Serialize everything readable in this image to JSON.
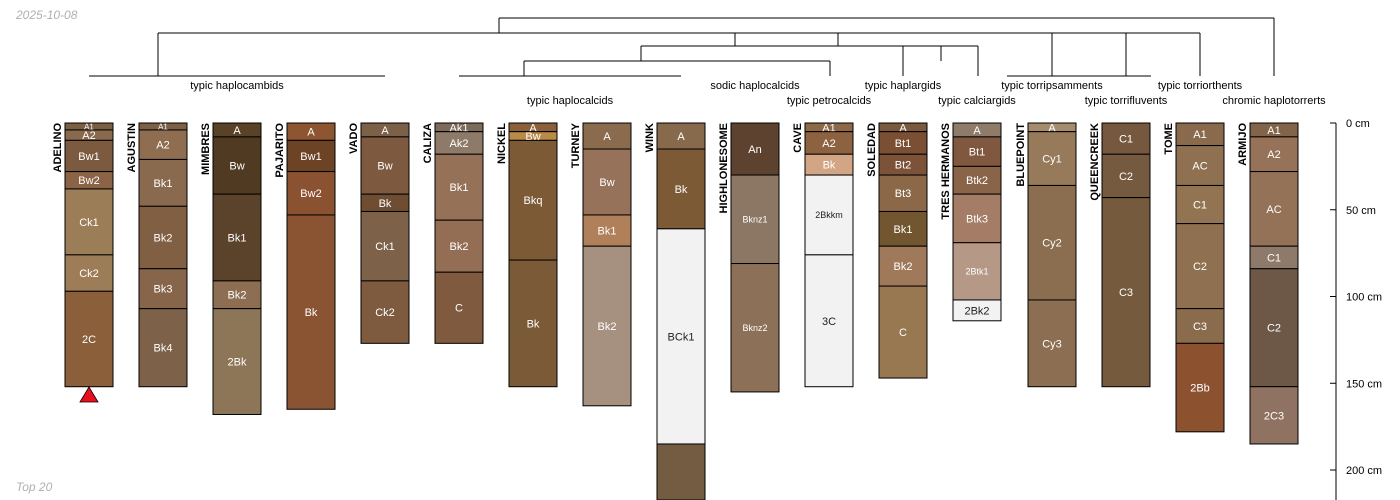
{
  "date_stamp": "2025-10-08",
  "footer": "Top 20",
  "depth_axis": {
    "unit": "cm",
    "ticks": [
      0,
      50,
      100,
      150,
      200
    ],
    "tick_labels": [
      "0 cm",
      "50 cm",
      "100 cm",
      "150 cm",
      "200 cm"
    ],
    "max_shown": 215
  },
  "colors": {
    "line": "#000000",
    "marker": "#e8101a",
    "white_horizon": "#f2f2f2"
  },
  "dendrogram": {
    "taxa_labels": [
      "typic haplocambids",
      "typic haplocalcids",
      "sodic haplocalcids",
      "typic petrocalcids",
      "typic haplargids",
      "typic calciargids",
      "typic torripsamments",
      "typic torrifluvents",
      "typic torriorthents",
      "chromic haplotorrerts"
    ]
  },
  "profiles": [
    {
      "name": "ADELINO",
      "marker": "red-triangle",
      "horizons": [
        {
          "n": "A1",
          "t": 0,
          "b": 4,
          "c": "#7a5f45"
        },
        {
          "n": "A2",
          "t": 4,
          "b": 10,
          "c": "#8a6a4e"
        },
        {
          "n": "Bw1",
          "t": 10,
          "b": 28,
          "c": "#7c5a3f"
        },
        {
          "n": "Bw2",
          "t": 28,
          "b": 38,
          "c": "#8b6346"
        },
        {
          "n": "Ck1",
          "t": 38,
          "b": 76,
          "c": "#9b7d57"
        },
        {
          "n": "Ck2",
          "t": 76,
          "b": 97,
          "c": "#9d7d58"
        },
        {
          "n": "2C",
          "t": 97,
          "b": 152,
          "c": "#8c5f3b"
        }
      ]
    },
    {
      "name": "AGUSTIN",
      "horizons": [
        {
          "n": "A1",
          "t": 0,
          "b": 4,
          "c": "#7c6048"
        },
        {
          "n": "A2",
          "t": 4,
          "b": 21,
          "c": "#8f6d50"
        },
        {
          "n": "Bk1",
          "t": 21,
          "b": 48,
          "c": "#8a6a4f"
        },
        {
          "n": "Bk2",
          "t": 48,
          "b": 84,
          "c": "#815f43"
        },
        {
          "n": "Bk3",
          "t": 84,
          "b": 107,
          "c": "#86654a"
        },
        {
          "n": "Bk4",
          "t": 107,
          "b": 152,
          "c": "#7d6148"
        }
      ]
    },
    {
      "name": "MIMBRES",
      "horizons": [
        {
          "n": "A",
          "t": 0,
          "b": 8,
          "c": "#5a4228"
        },
        {
          "n": "Bw",
          "t": 8,
          "b": 41,
          "c": "#503a22"
        },
        {
          "n": "Bk1",
          "t": 41,
          "b": 91,
          "c": "#5a432a"
        },
        {
          "n": "Bk2",
          "t": 91,
          "b": 107,
          "c": "#8d6e52"
        },
        {
          "n": "2Bk",
          "t": 107,
          "b": 168,
          "c": "#8c7657"
        }
      ]
    },
    {
      "name": "PAJARITO",
      "horizons": [
        {
          "n": "A",
          "t": 0,
          "b": 10,
          "c": "#8d5630"
        },
        {
          "n": "Bw1",
          "t": 10,
          "b": 28,
          "c": "#6d4326"
        },
        {
          "n": "Bw2",
          "t": 28,
          "b": 53,
          "c": "#8b5231"
        },
        {
          "n": "Bk",
          "t": 53,
          "b": 165,
          "c": "#8a5332"
        }
      ]
    },
    {
      "name": "VADO",
      "horizons": [
        {
          "n": "A",
          "t": 0,
          "b": 8,
          "c": "#7d6048"
        },
        {
          "n": "Bw",
          "t": 8,
          "b": 41,
          "c": "#7d5940"
        },
        {
          "n": "Bk",
          "t": 41,
          "b": 51,
          "c": "#6e4d33"
        },
        {
          "n": "Ck1",
          "t": 51,
          "b": 91,
          "c": "#7d6149"
        },
        {
          "n": "Ck2",
          "t": 91,
          "b": 127,
          "c": "#7e5b3f"
        }
      ]
    },
    {
      "name": "CALIZA",
      "horizons": [
        {
          "n": "Ak1",
          "t": 0,
          "b": 5,
          "c": "#7c6a5a"
        },
        {
          "n": "Ak2",
          "t": 5,
          "b": 18,
          "c": "#8e7a69"
        },
        {
          "n": "Bk1",
          "t": 18,
          "b": 56,
          "c": "#957157"
        },
        {
          "n": "Bk2",
          "t": 56,
          "b": 86,
          "c": "#936e54"
        },
        {
          "n": "C",
          "t": 86,
          "b": 127,
          "c": "#7f5a3f"
        }
      ]
    },
    {
      "name": "NICKEL",
      "horizons": [
        {
          "n": "A",
          "t": 0,
          "b": 5,
          "c": "#8a5f39"
        },
        {
          "n": "Bw",
          "t": 5,
          "b": 10,
          "c": "#b98a48"
        },
        {
          "n": "Bkq",
          "t": 10,
          "b": 79,
          "c": "#7c5a36"
        },
        {
          "n": "Bk",
          "t": 79,
          "b": 152,
          "c": "#7a5a37"
        }
      ]
    },
    {
      "name": "TURNEY",
      "horizons": [
        {
          "n": "A",
          "t": 0,
          "b": 15,
          "c": "#8a6b4e"
        },
        {
          "n": "Bw",
          "t": 15,
          "b": 53,
          "c": "#97725a"
        },
        {
          "n": "Bk1",
          "t": 53,
          "b": 71,
          "c": "#b0805a"
        },
        {
          "n": "Bk2",
          "t": 71,
          "b": 163,
          "c": "#a69080"
        }
      ]
    },
    {
      "name": "WINK",
      "horizons": [
        {
          "n": "A",
          "t": 0,
          "b": 15,
          "c": "#876a4c"
        },
        {
          "n": "Bk",
          "t": 15,
          "b": 61,
          "c": "#7c5a36"
        },
        {
          "n": "BCk1",
          "t": 61,
          "b": 185,
          "c": "#f2f2f2"
        },
        {
          "n": "",
          "t": 185,
          "b": 220,
          "c": "#735c42"
        }
      ]
    },
    {
      "name": "HIGHLONESOME",
      "horizons": [
        {
          "n": "An",
          "t": 0,
          "b": 30,
          "c": "#5e4230"
        },
        {
          "n": "Bknz1",
          "t": 30,
          "b": 81,
          "c": "#8c7764"
        },
        {
          "n": "Bknz2",
          "t": 81,
          "b": 155,
          "c": "#8d7058"
        }
      ]
    },
    {
      "name": "CAVE",
      "horizons": [
        {
          "n": "A1",
          "t": 0,
          "b": 5,
          "c": "#8d6948"
        },
        {
          "n": "A2",
          "t": 5,
          "b": 18,
          "c": "#8c6241"
        },
        {
          "n": "Bk",
          "t": 18,
          "b": 30,
          "c": "#d2a584"
        },
        {
          "n": "2Bkkm",
          "t": 30,
          "b": 76,
          "c": "#f2f2f2"
        },
        {
          "n": "3C",
          "t": 76,
          "b": 152,
          "c": "#f2f2f2"
        }
      ]
    },
    {
      "name": "SOLEDAD",
      "horizons": [
        {
          "n": "A",
          "t": 0,
          "b": 5,
          "c": "#7a5a3e"
        },
        {
          "n": "Bt1",
          "t": 5,
          "b": 18,
          "c": "#7a4f33"
        },
        {
          "n": "Bt2",
          "t": 18,
          "b": 30,
          "c": "#7c5338"
        },
        {
          "n": "Bt3",
          "t": 30,
          "b": 51,
          "c": "#8b6847"
        },
        {
          "n": "Bk1",
          "t": 51,
          "b": 71,
          "c": "#725630"
        },
        {
          "n": "Bk2",
          "t": 71,
          "b": 94,
          "c": "#a0795b"
        },
        {
          "n": "C",
          "t": 94,
          "b": 147,
          "c": "#977851"
        }
      ]
    },
    {
      "name": "TRES HERMANOS",
      "horizons": [
        {
          "n": "A",
          "t": 0,
          "b": 8,
          "c": "#8e7b6a"
        },
        {
          "n": "Bt1",
          "t": 8,
          "b": 25,
          "c": "#805840"
        },
        {
          "n": "Btk2",
          "t": 25,
          "b": 41,
          "c": "#8a6448"
        },
        {
          "n": "Btk3",
          "t": 41,
          "b": 69,
          "c": "#a57c66"
        },
        {
          "n": "2Btk1",
          "t": 69,
          "b": 102,
          "c": "#b59886"
        },
        {
          "n": "2Bk2",
          "t": 102,
          "b": 114,
          "c": "#f2f2f2"
        }
      ]
    },
    {
      "name": "BLUEPOINT",
      "horizons": [
        {
          "n": "A",
          "t": 0,
          "b": 5,
          "c": "#a58c6e"
        },
        {
          "n": "Cy1",
          "t": 5,
          "b": 36,
          "c": "#967a59"
        },
        {
          "n": "Cy2",
          "t": 36,
          "b": 102,
          "c": "#8b6d50"
        },
        {
          "n": "Cy3",
          "t": 102,
          "b": 152,
          "c": "#8c6f52"
        }
      ]
    },
    {
      "name": "QUEENCREEK",
      "horizons": [
        {
          "n": "C1",
          "t": 0,
          "b": 18,
          "c": "#75583e"
        },
        {
          "n": "C2",
          "t": 18,
          "b": 43,
          "c": "#755a40"
        },
        {
          "n": "C3",
          "t": 43,
          "b": 152,
          "c": "#755a3e"
        }
      ]
    },
    {
      "name": "TOME",
      "horizons": [
        {
          "n": "A1",
          "t": 0,
          "b": 13,
          "c": "#8a6a4c"
        },
        {
          "n": "AC",
          "t": 13,
          "b": 36,
          "c": "#8f7152"
        },
        {
          "n": "C1",
          "t": 36,
          "b": 58,
          "c": "#927352"
        },
        {
          "n": "C2",
          "t": 58,
          "b": 107,
          "c": "#8f7050"
        },
        {
          "n": "C3",
          "t": 107,
          "b": 127,
          "c": "#8a6b4c"
        },
        {
          "n": "2Bb",
          "t": 127,
          "b": 178,
          "c": "#8c5230"
        }
      ]
    },
    {
      "name": "ARMIJO",
      "horizons": [
        {
          "n": "A1",
          "t": 0,
          "b": 8,
          "c": "#82644a"
        },
        {
          "n": "A2",
          "t": 8,
          "b": 28,
          "c": "#957258"
        },
        {
          "n": "AC",
          "t": 28,
          "b": 71,
          "c": "#937258"
        },
        {
          "n": "C1",
          "t": 71,
          "b": 84,
          "c": "#8d7a6a"
        },
        {
          "n": "C2",
          "t": 84,
          "b": 152,
          "c": "#6d5848"
        },
        {
          "n": "2C3",
          "t": 152,
          "b": 185,
          "c": "#8f7261"
        }
      ]
    }
  ]
}
